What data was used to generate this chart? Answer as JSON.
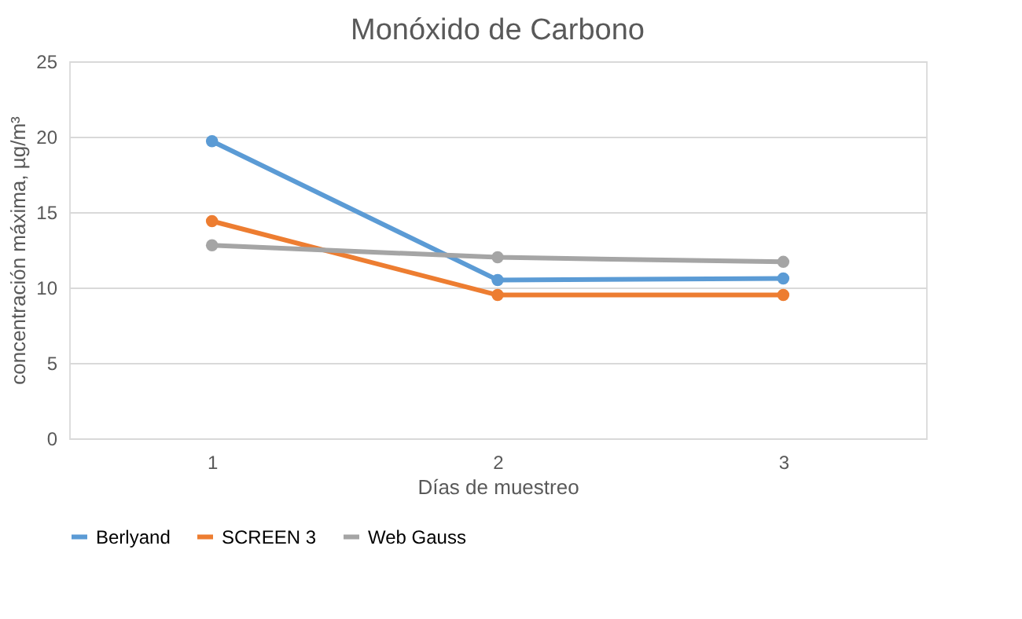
{
  "chart_data": {
    "type": "line",
    "title": "Monóxido de Carbono",
    "xlabel": "Días de muestreo",
    "ylabel": "concentración máxima, µg/m³",
    "categories": [
      "1",
      "2",
      "3"
    ],
    "series": [
      {
        "name": "Berlyand",
        "color": "#5b9bd5",
        "values": [
          19.7,
          10.5,
          10.6
        ]
      },
      {
        "name": "SCREEN 3",
        "color": "#ed7d31",
        "values": [
          14.4,
          9.5,
          9.5
        ]
      },
      {
        "name": "Web Gauss",
        "color": "#a5a5a5",
        "values": [
          12.8,
          12.0,
          11.7
        ]
      }
    ],
    "ylim": [
      0,
      25
    ],
    "yticks": [
      0,
      5,
      10,
      15,
      20,
      25
    ],
    "grid": "y",
    "legend": "bottom",
    "marker": "circle",
    "line_style": "solid"
  }
}
